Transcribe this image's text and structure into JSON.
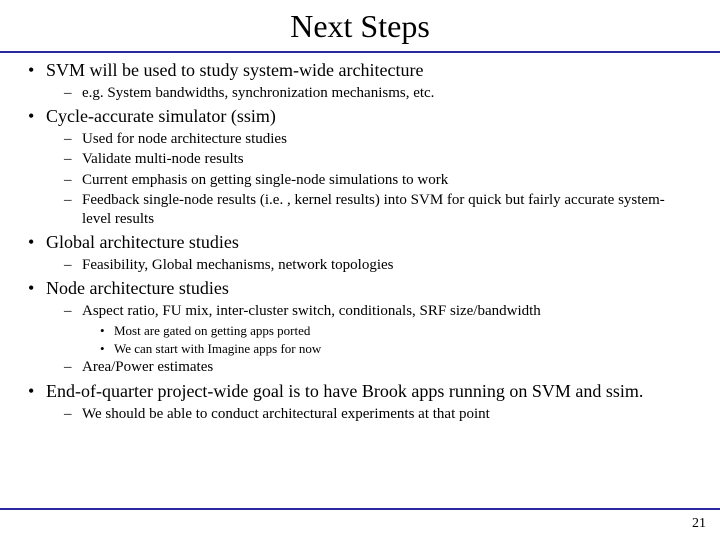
{
  "title": "Next Steps",
  "rule_color": "#2a2aa0",
  "page_number": "21",
  "bullets": {
    "b1": "SVM will be used to study system-wide architecture",
    "b1_1": "e.g. System bandwidths, synchronization mechanisms, etc.",
    "b2": "Cycle-accurate simulator (ssim)",
    "b2_1": "Used for node architecture studies",
    "b2_2": "Validate multi-node results",
    "b2_3": "Current emphasis on getting single-node simulations to work",
    "b2_4": "Feedback single-node results (i.e. , kernel results) into SVM for quick but fairly accurate system-level results",
    "b3": "Global architecture studies",
    "b3_1": "Feasibility, Global mechanisms, network topologies",
    "b4": "Node architecture studies",
    "b4_1": "Aspect ratio, FU mix, inter-cluster switch, conditionals, SRF size/bandwidth",
    "b4_1_1": "Most are gated on getting apps ported",
    "b4_1_2": "We can start with Imagine apps for now",
    "b4_2": "Area/Power estimates",
    "b5": "End-of-quarter project-wide goal is to have Brook apps running on SVM and ssim.",
    "b5_1": "We should be able to conduct architectural experiments at that point"
  }
}
